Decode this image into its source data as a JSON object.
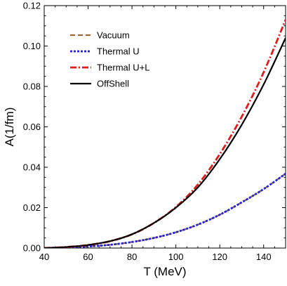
{
  "chart_data": {
    "type": "line",
    "xlabel": "T (MeV)",
    "ylabel": "A(1/fm)",
    "xlim": [
      40,
      150
    ],
    "ylim": [
      0,
      0.12
    ],
    "x_ticks": [
      40,
      60,
      80,
      100,
      120,
      140
    ],
    "y_ticks": [
      0.0,
      0.02,
      0.04,
      0.06,
      0.08,
      0.1,
      0.12
    ],
    "y_tick_labels": [
      "0.00",
      "0.02",
      "0.04",
      "0.06",
      "0.08",
      "0.10",
      "0.12"
    ],
    "grid": false,
    "legend_position": "top-left",
    "x": [
      40,
      50,
      60,
      70,
      80,
      90,
      100,
      110,
      120,
      130,
      140,
      150
    ],
    "series": [
      {
        "name": "Vacuum",
        "color": "#a0672c",
        "dash": "dashed",
        "values": [
          0.0,
          0.0003,
          0.0008,
          0.0016,
          0.003,
          0.005,
          0.0078,
          0.0116,
          0.0165,
          0.0226,
          0.0292,
          0.0368
        ]
      },
      {
        "name": "Thermal U",
        "color": "#1f1fe6",
        "dash": "dotted",
        "values": [
          0.0,
          0.0003,
          0.0008,
          0.0016,
          0.003,
          0.005,
          0.0078,
          0.0116,
          0.0165,
          0.0226,
          0.0292,
          0.0368
        ]
      },
      {
        "name": "Thermal U+L",
        "color": "#e31a1c",
        "dash": "dashdot",
        "values": [
          0.0,
          0.0005,
          0.0015,
          0.0034,
          0.0068,
          0.0124,
          0.0203,
          0.0314,
          0.0465,
          0.065,
          0.087,
          0.113
        ]
      },
      {
        "name": "OffShell",
        "color": "#000000",
        "dash": "solid",
        "values": [
          0.0,
          0.0005,
          0.0015,
          0.0034,
          0.0068,
          0.0124,
          0.02,
          0.03,
          0.044,
          0.061,
          0.081,
          0.104
        ]
      }
    ]
  }
}
